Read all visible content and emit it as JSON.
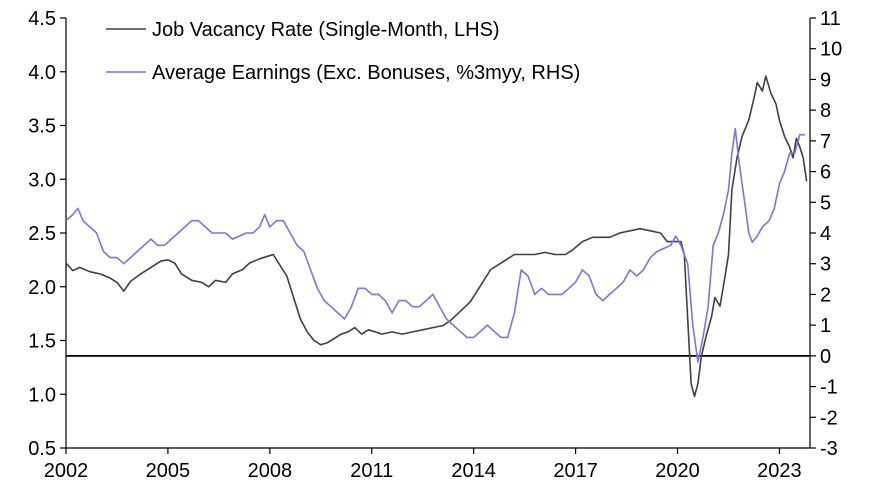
{
  "chart_data": {
    "type": "line",
    "title": "",
    "x_tick_labels": [
      "2002",
      "2005",
      "2008",
      "2011",
      "2014",
      "2017",
      "2020",
      "2023"
    ],
    "x_tick_values": [
      2002,
      2005,
      2008,
      2011,
      2014,
      2017,
      2020,
      2023
    ],
    "xlim": [
      2002,
      2023.9
    ],
    "y_left": {
      "ylim": [
        0.5,
        4.5
      ],
      "tick_labels": [
        "0.5",
        "1.0",
        "1.5",
        "2.0",
        "2.5",
        "3.0",
        "3.5",
        "4.0",
        "4.5"
      ],
      "tick_values": [
        0.5,
        1.0,
        1.5,
        2.0,
        2.5,
        3.0,
        3.5,
        4.0,
        4.5
      ]
    },
    "y_right": {
      "ylim": [
        -3,
        11
      ],
      "tick_labels": [
        "-3",
        "-2",
        "-1",
        "0",
        "1",
        "2",
        "3",
        "4",
        "5",
        "6",
        "7",
        "8",
        "9",
        "10",
        "11"
      ],
      "tick_values": [
        -3,
        -2,
        -1,
        0,
        1,
        2,
        3,
        4,
        5,
        6,
        7,
        8,
        9,
        10,
        11
      ]
    },
    "zero_line": {
      "axis": "right",
      "value": 0
    },
    "grid": false,
    "legend_position": "top-left",
    "series": [
      {
        "name": "Job Vacancy Rate (Single-Month, LHS)",
        "axis": "left",
        "color": "#404040",
        "points": [
          [
            2002.0,
            2.22
          ],
          [
            2002.2,
            2.15
          ],
          [
            2002.4,
            2.18
          ],
          [
            2002.7,
            2.14
          ],
          [
            2003.0,
            2.12
          ],
          [
            2003.3,
            2.08
          ],
          [
            2003.5,
            2.04
          ],
          [
            2003.7,
            1.96
          ],
          [
            2003.9,
            2.05
          ],
          [
            2004.2,
            2.12
          ],
          [
            2004.5,
            2.18
          ],
          [
            2004.8,
            2.24
          ],
          [
            2005.0,
            2.25
          ],
          [
            2005.2,
            2.22
          ],
          [
            2005.4,
            2.12
          ],
          [
            2005.7,
            2.06
          ],
          [
            2006.0,
            2.04
          ],
          [
            2006.2,
            2.0
          ],
          [
            2006.4,
            2.06
          ],
          [
            2006.7,
            2.04
          ],
          [
            2006.9,
            2.12
          ],
          [
            2007.2,
            2.16
          ],
          [
            2007.4,
            2.22
          ],
          [
            2007.7,
            2.26
          ],
          [
            2007.9,
            2.28
          ],
          [
            2008.1,
            2.3
          ],
          [
            2008.3,
            2.2
          ],
          [
            2008.5,
            2.1
          ],
          [
            2008.7,
            1.9
          ],
          [
            2008.9,
            1.7
          ],
          [
            2009.1,
            1.58
          ],
          [
            2009.3,
            1.5
          ],
          [
            2009.5,
            1.46
          ],
          [
            2009.7,
            1.48
          ],
          [
            2009.9,
            1.52
          ],
          [
            2010.1,
            1.56
          ],
          [
            2010.3,
            1.58
          ],
          [
            2010.5,
            1.62
          ],
          [
            2010.7,
            1.56
          ],
          [
            2010.9,
            1.6
          ],
          [
            2011.1,
            1.58
          ],
          [
            2011.3,
            1.56
          ],
          [
            2011.6,
            1.58
          ],
          [
            2011.9,
            1.56
          ],
          [
            2012.2,
            1.58
          ],
          [
            2012.5,
            1.6
          ],
          [
            2012.8,
            1.62
          ],
          [
            2013.1,
            1.64
          ],
          [
            2013.3,
            1.68
          ],
          [
            2013.5,
            1.74
          ],
          [
            2013.7,
            1.8
          ],
          [
            2013.9,
            1.86
          ],
          [
            2014.1,
            1.96
          ],
          [
            2014.3,
            2.06
          ],
          [
            2014.5,
            2.16
          ],
          [
            2014.7,
            2.2
          ],
          [
            2014.9,
            2.24
          ],
          [
            2015.2,
            2.3
          ],
          [
            2015.5,
            2.3
          ],
          [
            2015.8,
            2.3
          ],
          [
            2016.1,
            2.32
          ],
          [
            2016.4,
            2.3
          ],
          [
            2016.7,
            2.3
          ],
          [
            2016.9,
            2.34
          ],
          [
            2017.2,
            2.42
          ],
          [
            2017.5,
            2.46
          ],
          [
            2017.8,
            2.46
          ],
          [
            2018.0,
            2.46
          ],
          [
            2018.3,
            2.5
          ],
          [
            2018.6,
            2.52
          ],
          [
            2018.9,
            2.54
          ],
          [
            2019.2,
            2.52
          ],
          [
            2019.5,
            2.5
          ],
          [
            2019.7,
            2.42
          ],
          [
            2019.9,
            2.42
          ],
          [
            2020.1,
            2.42
          ],
          [
            2020.2,
            2.3
          ],
          [
            2020.3,
            1.7
          ],
          [
            2020.4,
            1.1
          ],
          [
            2020.5,
            0.98
          ],
          [
            2020.6,
            1.1
          ],
          [
            2020.7,
            1.35
          ],
          [
            2020.85,
            1.55
          ],
          [
            2021.0,
            1.72
          ],
          [
            2021.1,
            1.9
          ],
          [
            2021.25,
            1.82
          ],
          [
            2021.4,
            2.1
          ],
          [
            2021.5,
            2.3
          ],
          [
            2021.6,
            2.9
          ],
          [
            2021.75,
            3.2
          ],
          [
            2021.9,
            3.4
          ],
          [
            2022.1,
            3.55
          ],
          [
            2022.25,
            3.75
          ],
          [
            2022.35,
            3.9
          ],
          [
            2022.5,
            3.82
          ],
          [
            2022.6,
            3.96
          ],
          [
            2022.75,
            3.8
          ],
          [
            2022.9,
            3.7
          ],
          [
            2023.0,
            3.55
          ],
          [
            2023.15,
            3.4
          ],
          [
            2023.3,
            3.3
          ],
          [
            2023.4,
            3.2
          ],
          [
            2023.5,
            3.38
          ],
          [
            2023.6,
            3.3
          ],
          [
            2023.7,
            3.2
          ],
          [
            2023.8,
            2.98
          ]
        ]
      },
      {
        "name": "Average Earnings (Exc. Bonuses, %3myy, RHS)",
        "axis": "right",
        "color": "#7777dd",
        "points": [
          [
            2002.0,
            4.4
          ],
          [
            2002.2,
            4.6
          ],
          [
            2002.35,
            4.8
          ],
          [
            2002.5,
            4.4
          ],
          [
            2002.7,
            4.2
          ],
          [
            2002.9,
            4.0
          ],
          [
            2003.1,
            3.4
          ],
          [
            2003.3,
            3.2
          ],
          [
            2003.5,
            3.2
          ],
          [
            2003.7,
            3.0
          ],
          [
            2003.9,
            3.2
          ],
          [
            2004.1,
            3.4
          ],
          [
            2004.3,
            3.6
          ],
          [
            2004.5,
            3.8
          ],
          [
            2004.7,
            3.6
          ],
          [
            2004.9,
            3.6
          ],
          [
            2005.1,
            3.8
          ],
          [
            2005.3,
            4.0
          ],
          [
            2005.5,
            4.2
          ],
          [
            2005.7,
            4.4
          ],
          [
            2005.9,
            4.4
          ],
          [
            2006.1,
            4.2
          ],
          [
            2006.3,
            4.0
          ],
          [
            2006.5,
            4.0
          ],
          [
            2006.7,
            4.0
          ],
          [
            2006.9,
            3.8
          ],
          [
            2007.1,
            3.9
          ],
          [
            2007.3,
            4.0
          ],
          [
            2007.5,
            4.0
          ],
          [
            2007.7,
            4.2
          ],
          [
            2007.85,
            4.6
          ],
          [
            2008.0,
            4.2
          ],
          [
            2008.2,
            4.4
          ],
          [
            2008.4,
            4.4
          ],
          [
            2008.6,
            4.0
          ],
          [
            2008.8,
            3.6
          ],
          [
            2009.0,
            3.4
          ],
          [
            2009.2,
            2.8
          ],
          [
            2009.4,
            2.2
          ],
          [
            2009.6,
            1.8
          ],
          [
            2009.8,
            1.6
          ],
          [
            2010.0,
            1.4
          ],
          [
            2010.2,
            1.2
          ],
          [
            2010.4,
            1.6
          ],
          [
            2010.6,
            2.2
          ],
          [
            2010.8,
            2.2
          ],
          [
            2011.0,
            2.0
          ],
          [
            2011.2,
            2.0
          ],
          [
            2011.4,
            1.8
          ],
          [
            2011.6,
            1.4
          ],
          [
            2011.8,
            1.8
          ],
          [
            2012.0,
            1.8
          ],
          [
            2012.2,
            1.6
          ],
          [
            2012.4,
            1.6
          ],
          [
            2012.6,
            1.8
          ],
          [
            2012.8,
            2.0
          ],
          [
            2013.0,
            1.6
          ],
          [
            2013.2,
            1.2
          ],
          [
            2013.4,
            1.0
          ],
          [
            2013.6,
            0.8
          ],
          [
            2013.8,
            0.6
          ],
          [
            2014.0,
            0.6
          ],
          [
            2014.2,
            0.8
          ],
          [
            2014.4,
            1.0
          ],
          [
            2014.6,
            0.8
          ],
          [
            2014.8,
            0.6
          ],
          [
            2015.0,
            0.6
          ],
          [
            2015.2,
            1.4
          ],
          [
            2015.4,
            2.8
          ],
          [
            2015.6,
            2.6
          ],
          [
            2015.8,
            2.0
          ],
          [
            2016.0,
            2.2
          ],
          [
            2016.2,
            2.0
          ],
          [
            2016.4,
            2.0
          ],
          [
            2016.6,
            2.0
          ],
          [
            2016.8,
            2.2
          ],
          [
            2017.0,
            2.4
          ],
          [
            2017.2,
            2.8
          ],
          [
            2017.4,
            2.6
          ],
          [
            2017.6,
            2.0
          ],
          [
            2017.8,
            1.8
          ],
          [
            2018.0,
            2.0
          ],
          [
            2018.2,
            2.2
          ],
          [
            2018.4,
            2.4
          ],
          [
            2018.6,
            2.8
          ],
          [
            2018.8,
            2.6
          ],
          [
            2019.0,
            2.8
          ],
          [
            2019.2,
            3.2
          ],
          [
            2019.4,
            3.4
          ],
          [
            2019.6,
            3.5
          ],
          [
            2019.8,
            3.6
          ],
          [
            2019.95,
            3.9
          ],
          [
            2020.1,
            3.6
          ],
          [
            2020.3,
            3.0
          ],
          [
            2020.45,
            1.0
          ],
          [
            2020.6,
            -0.2
          ],
          [
            2020.75,
            0.6
          ],
          [
            2020.9,
            1.6
          ],
          [
            2021.05,
            3.6
          ],
          [
            2021.2,
            4.0
          ],
          [
            2021.35,
            4.6
          ],
          [
            2021.5,
            5.4
          ],
          [
            2021.6,
            6.6
          ],
          [
            2021.7,
            7.4
          ],
          [
            2021.8,
            6.4
          ],
          [
            2021.9,
            5.6
          ],
          [
            2022.0,
            4.8
          ],
          [
            2022.1,
            4.0
          ],
          [
            2022.2,
            3.7
          ],
          [
            2022.35,
            3.9
          ],
          [
            2022.5,
            4.2
          ],
          [
            2022.7,
            4.4
          ],
          [
            2022.85,
            4.8
          ],
          [
            2023.0,
            5.6
          ],
          [
            2023.15,
            6.0
          ],
          [
            2023.3,
            6.6
          ],
          [
            2023.45,
            6.6
          ],
          [
            2023.6,
            7.2
          ],
          [
            2023.75,
            7.2
          ]
        ]
      }
    ]
  }
}
